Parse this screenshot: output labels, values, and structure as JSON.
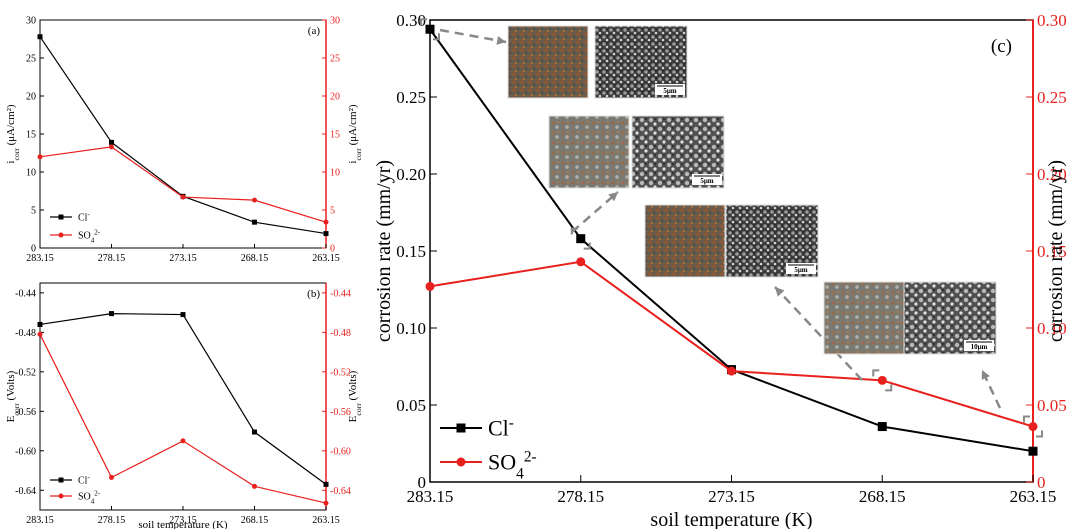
{
  "chart_data": [
    {
      "panel": "(a)",
      "type": "line",
      "categories": [
        "283.15",
        "278.15",
        "273.15",
        "268.15",
        "263.15"
      ],
      "xlabel": "",
      "ylabel": "i",
      "ylabel_sub": "corr",
      "ylabel_unit": "(μA/cm²)",
      "ylim": [
        0,
        30
      ],
      "yticks": [
        "0",
        "5",
        "10",
        "15",
        "20",
        "25",
        "30"
      ],
      "series": [
        {
          "name": "Cl",
          "name_sup": "-",
          "color": "#000000",
          "marker": "square",
          "values": [
            27.8,
            13.9,
            6.8,
            3.4,
            1.9
          ]
        },
        {
          "name": "SO",
          "name_sub": "4",
          "name_sup": "2-",
          "color": "#e8201e",
          "marker": "circle",
          "values": [
            12.0,
            13.3,
            6.7,
            6.3,
            3.4
          ]
        }
      ]
    },
    {
      "panel": "(b)",
      "type": "line",
      "categories": [
        "283.15",
        "278.15",
        "273.15",
        "268.15",
        "263.15"
      ],
      "xlabel": "soil temperature (K)",
      "ylabel": "E",
      "ylabel_sub": "corr",
      "ylabel_unit": "(Volts)",
      "ylim": [
        -0.66,
        -0.43
      ],
      "yticks": [
        "-0.44",
        "-0.48",
        "-0.52",
        "-0.56",
        "-0.60",
        "-0.64"
      ],
      "series": [
        {
          "name": "Cl",
          "name_sup": "-",
          "color": "#000000",
          "marker": "square",
          "values": [
            -0.472,
            -0.461,
            -0.462,
            -0.581,
            -0.634
          ]
        },
        {
          "name": "SO",
          "name_sub": "4",
          "name_sup": "2-",
          "color": "#e8201e",
          "marker": "circle",
          "values": [
            -0.482,
            -0.627,
            -0.59,
            -0.636,
            -0.653
          ]
        }
      ]
    },
    {
      "panel": "(c)",
      "type": "line",
      "categories": [
        "283.15",
        "278.15",
        "273.15",
        "268.15",
        "263.15"
      ],
      "xlabel": "soil temperature (K)",
      "ylabel": "corrosion rate (mm/yr)",
      "ylim": [
        0,
        0.3
      ],
      "yticks": [
        "0",
        "0.05",
        "0.10",
        "0.15",
        "0.20",
        "0.25",
        "0.30"
      ],
      "series": [
        {
          "name": "Cl",
          "name_sup": "-",
          "color": "#000000",
          "marker": "square",
          "values": [
            0.294,
            0.158,
            0.073,
            0.036,
            0.02
          ]
        },
        {
          "name": "SO",
          "name_sub": "4",
          "name_sup": "2-",
          "color": "#e8201e",
          "marker": "circle",
          "values": [
            0.127,
            0.143,
            0.072,
            0.066,
            0.036
          ]
        }
      ],
      "insets": [
        {
          "category": "283.15",
          "scale_label": "5μm"
        },
        {
          "category": "278.15",
          "scale_label": "5μm"
        },
        {
          "category": "273.15",
          "scale_label": "5μm"
        },
        {
          "category": "263.15",
          "scale_label": "10μm"
        }
      ]
    }
  ],
  "colors": {
    "black_series": "#000000",
    "red_series": "#e8201e"
  }
}
